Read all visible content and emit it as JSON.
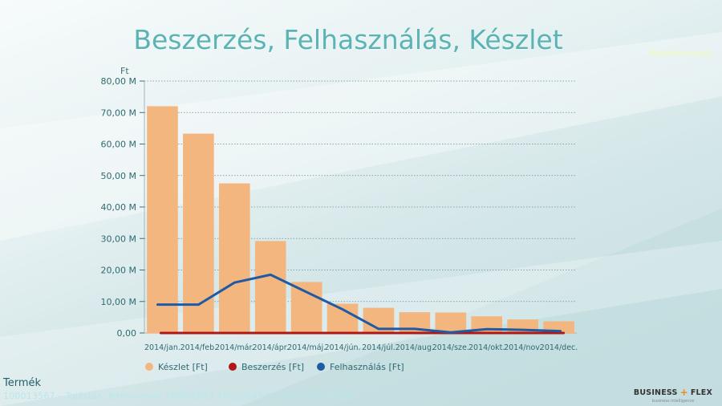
{
  "title": "Beszerzés, Felhasználás, Készlet",
  "top_link": "Készletmodell",
  "product_label": "Termék",
  "product_value": "100013567 – Tojástár, Termoyoveli 1606|1563 200290413 – Teremvali 10 db",
  "brand": {
    "name_left": "BUSINESS",
    "name_right": "FLEX",
    "plus_glyph": "+",
    "tagline": "business intelligence"
  },
  "colors": {
    "keszlet": "#f4b67f",
    "beszerzes": "#b01716",
    "felhasznalas": "#1f5aa5"
  },
  "chart_data": {
    "type": "bar",
    "y_unit": "Ft",
    "ylim": [
      0,
      80000000
    ],
    "y_ticks": [
      {
        "value": 0,
        "label": "0,00"
      },
      {
        "value": 10000000,
        "label": "10,00 M"
      },
      {
        "value": 20000000,
        "label": "20,00 M"
      },
      {
        "value": 30000000,
        "label": "30,00 M"
      },
      {
        "value": 40000000,
        "label": "40,00 M"
      },
      {
        "value": 50000000,
        "label": "50,00 M"
      },
      {
        "value": 60000000,
        "label": "60,00 M"
      },
      {
        "value": 70000000,
        "label": "70,00 M"
      },
      {
        "value": 80000000,
        "label": "80,00 M"
      }
    ],
    "grid": true,
    "legend_position": "bottom-left",
    "categories": [
      "2014/jan.",
      "2014/feb.",
      "2014/már.",
      "2014/ápr.",
      "2014/máj.",
      "2014/jún.",
      "2014/júl.",
      "2014/aug.",
      "2014/sze.",
      "2014/okt.",
      "2014/nov.",
      "2014/dec."
    ],
    "series": [
      {
        "name": "Készlet [Ft]",
        "kind": "bar",
        "values": [
          72000000,
          63300000,
          47500000,
          29200000,
          16200000,
          9300000,
          8000000,
          6600000,
          6500000,
          5300000,
          4300000,
          3700000
        ]
      },
      {
        "name": "Beszerzés [Ft]",
        "kind": "line",
        "values": [
          0,
          0,
          0,
          0,
          0,
          0,
          0,
          0,
          0,
          0,
          0,
          0
        ]
      },
      {
        "name": "Felhasználás [Ft]",
        "kind": "line",
        "values": [
          9000000,
          9000000,
          16000000,
          18500000,
          13000000,
          7500000,
          1300000,
          1300000,
          200000,
          1200000,
          1000000,
          600000
        ]
      }
    ]
  }
}
